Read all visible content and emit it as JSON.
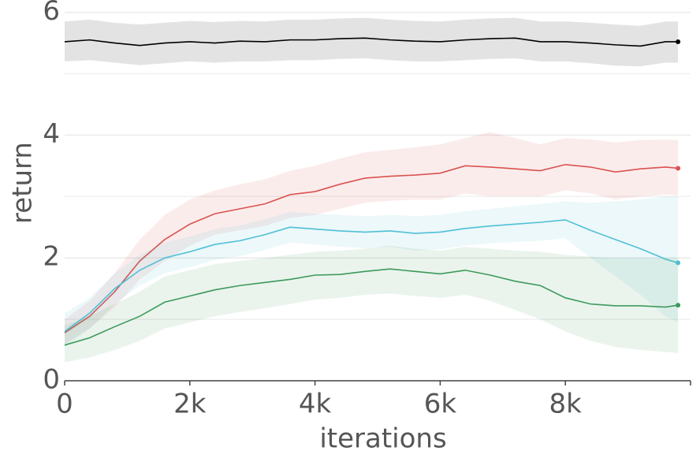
{
  "chart_data": {
    "type": "line",
    "xlabel": "iterations",
    "ylabel": "return",
    "x": [
      0,
      400,
      800,
      1200,
      1600,
      2000,
      2400,
      2800,
      3200,
      3600,
      4000,
      4400,
      4800,
      5200,
      5600,
      6000,
      6400,
      6800,
      7200,
      7600,
      8000,
      8400,
      8800,
      9200,
      9600,
      9800
    ],
    "xlim": [
      0,
      10000
    ],
    "xticks": [
      0,
      {
        "value": 2000,
        "label": "2k"
      },
      {
        "value": 4000,
        "label": "4k"
      },
      {
        "value": 6000,
        "label": "6k"
      },
      {
        "value": 8000,
        "label": "8k"
      }
    ],
    "ylim": [
      0,
      6.2
    ],
    "yticks": [
      0,
      2,
      4,
      6
    ],
    "minor_yticks": [
      1,
      3,
      5
    ],
    "grid": true,
    "series": [
      {
        "color": "#000000",
        "values": [
          5.52,
          5.55,
          5.5,
          5.46,
          5.5,
          5.52,
          5.5,
          5.53,
          5.52,
          5.55,
          5.55,
          5.57,
          5.58,
          5.55,
          5.53,
          5.52,
          5.55,
          5.57,
          5.58,
          5.52,
          5.52,
          5.5,
          5.47,
          5.45,
          5.52,
          5.52
        ],
        "upper": [
          5.85,
          5.88,
          5.83,
          5.8,
          5.83,
          5.86,
          5.84,
          5.86,
          5.85,
          5.88,
          5.88,
          5.9,
          5.91,
          5.88,
          5.86,
          5.85,
          5.88,
          5.9,
          5.91,
          5.85,
          5.85,
          5.83,
          5.8,
          5.78,
          5.85,
          5.85
        ],
        "lower": [
          5.2,
          5.22,
          5.18,
          5.14,
          5.17,
          5.2,
          5.18,
          5.2,
          5.2,
          5.22,
          5.22,
          5.24,
          5.25,
          5.22,
          5.2,
          5.2,
          5.22,
          5.24,
          5.25,
          5.2,
          5.2,
          5.17,
          5.13,
          5.12,
          5.18,
          5.18
        ]
      },
      {
        "color": "#d9534f",
        "values": [
          0.78,
          1.05,
          1.45,
          1.95,
          2.3,
          2.55,
          2.72,
          2.8,
          2.88,
          3.03,
          3.08,
          3.2,
          3.3,
          3.33,
          3.35,
          3.38,
          3.5,
          3.48,
          3.45,
          3.42,
          3.52,
          3.48,
          3.4,
          3.45,
          3.48,
          3.46
        ],
        "upper": [
          1.0,
          1.3,
          1.75,
          2.3,
          2.7,
          2.95,
          3.1,
          3.2,
          3.28,
          3.42,
          3.5,
          3.62,
          3.72,
          3.76,
          3.8,
          3.85,
          3.95,
          4.05,
          3.95,
          3.85,
          3.95,
          3.93,
          3.88,
          3.92,
          3.93,
          3.92
        ],
        "lower": [
          0.6,
          0.85,
          1.2,
          1.65,
          1.95,
          2.2,
          2.38,
          2.45,
          2.52,
          2.65,
          2.7,
          2.8,
          2.9,
          2.93,
          2.95,
          2.95,
          3.05,
          3.0,
          3.0,
          3.0,
          3.1,
          3.05,
          2.95,
          3.0,
          3.03,
          3.02
        ]
      },
      {
        "color": "#4fc0d6",
        "values": [
          0.8,
          1.1,
          1.5,
          1.8,
          2.0,
          2.1,
          2.22,
          2.28,
          2.38,
          2.5,
          2.47,
          2.44,
          2.42,
          2.44,
          2.4,
          2.42,
          2.48,
          2.52,
          2.55,
          2.58,
          2.62,
          2.45,
          2.3,
          2.15,
          1.98,
          1.92
        ],
        "upper": [
          1.1,
          1.35,
          1.75,
          2.05,
          2.25,
          2.35,
          2.47,
          2.53,
          2.63,
          2.75,
          2.72,
          2.7,
          2.68,
          2.7,
          2.68,
          2.7,
          2.76,
          2.8,
          2.84,
          2.88,
          2.92,
          2.9,
          2.92,
          2.95,
          3.0,
          3.0
        ],
        "lower": [
          0.55,
          0.85,
          1.25,
          1.55,
          1.75,
          1.85,
          1.97,
          2.03,
          2.13,
          2.25,
          2.22,
          2.18,
          2.16,
          2.18,
          2.12,
          2.14,
          2.2,
          2.24,
          2.26,
          2.28,
          2.32,
          2.0,
          1.7,
          1.4,
          1.05,
          0.95
        ]
      },
      {
        "color": "#3d9a5a",
        "values": [
          0.58,
          0.7,
          0.88,
          1.05,
          1.28,
          1.38,
          1.48,
          1.55,
          1.6,
          1.65,
          1.72,
          1.73,
          1.78,
          1.82,
          1.78,
          1.74,
          1.8,
          1.72,
          1.62,
          1.55,
          1.35,
          1.25,
          1.22,
          1.22,
          1.2,
          1.23
        ],
        "upper": [
          0.9,
          1.05,
          1.25,
          1.45,
          1.7,
          1.8,
          1.9,
          1.95,
          2.0,
          2.05,
          2.1,
          2.12,
          2.15,
          2.2,
          2.15,
          2.12,
          2.18,
          2.15,
          2.12,
          2.1,
          2.05,
          2.02,
          2.0,
          2.0,
          2.0,
          2.0
        ],
        "lower": [
          0.3,
          0.38,
          0.5,
          0.65,
          0.85,
          0.95,
          1.05,
          1.12,
          1.18,
          1.25,
          1.32,
          1.35,
          1.4,
          1.42,
          1.38,
          1.35,
          1.4,
          1.3,
          1.15,
          1.0,
          0.8,
          0.65,
          0.55,
          0.5,
          0.47,
          0.45
        ]
      }
    ]
  }
}
